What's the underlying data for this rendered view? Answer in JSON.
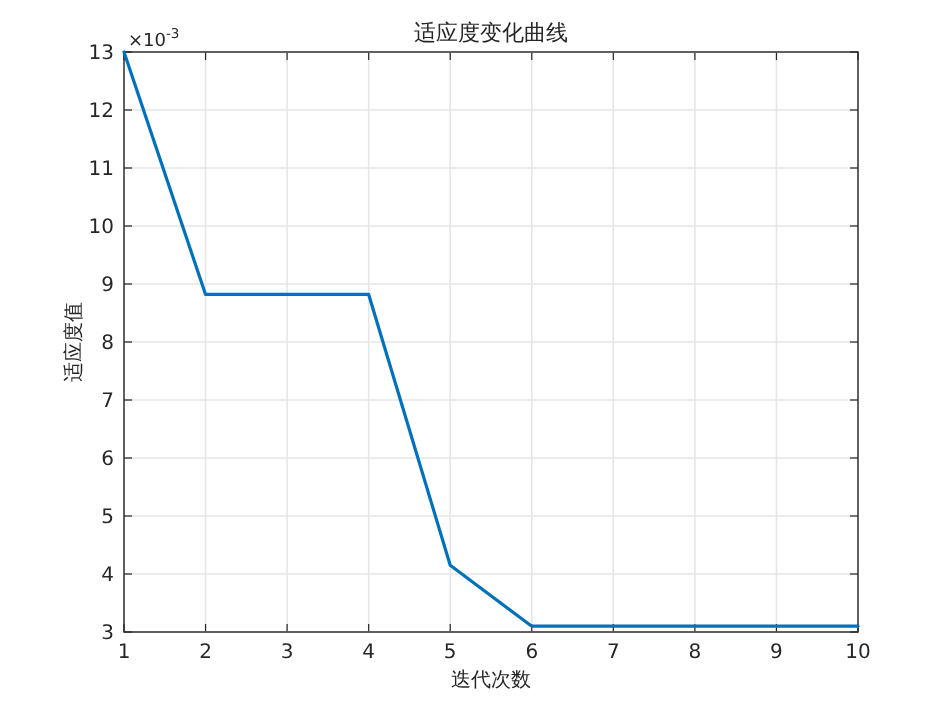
{
  "chart_data": {
    "type": "line",
    "title": "适应度变化曲线",
    "xlabel": "迭代次数",
    "ylabel": "适应度值",
    "annotations": [
      "×10$^{-3}$"
    ],
    "x": [
      1,
      2,
      3,
      4,
      5,
      6,
      7,
      8,
      9,
      10
    ],
    "series": [
      {
        "color": "#0072bd",
        "values": [
          13,
          8.82,
          8.82,
          8.82,
          4.15,
          3.1,
          3.1,
          3.1,
          3.1,
          3.1
        ]
      }
    ],
    "xlim": [
      1,
      10
    ],
    "xticks": [
      1,
      2,
      3,
      4,
      5,
      6,
      7,
      8,
      9,
      10
    ],
    "ylim": [
      3,
      13
    ],
    "yticks": [
      3,
      4,
      5,
      6,
      7,
      8,
      9,
      10,
      11,
      12,
      13
    ],
    "grid": true,
    "marker": "none",
    "line_style": "solid"
  }
}
